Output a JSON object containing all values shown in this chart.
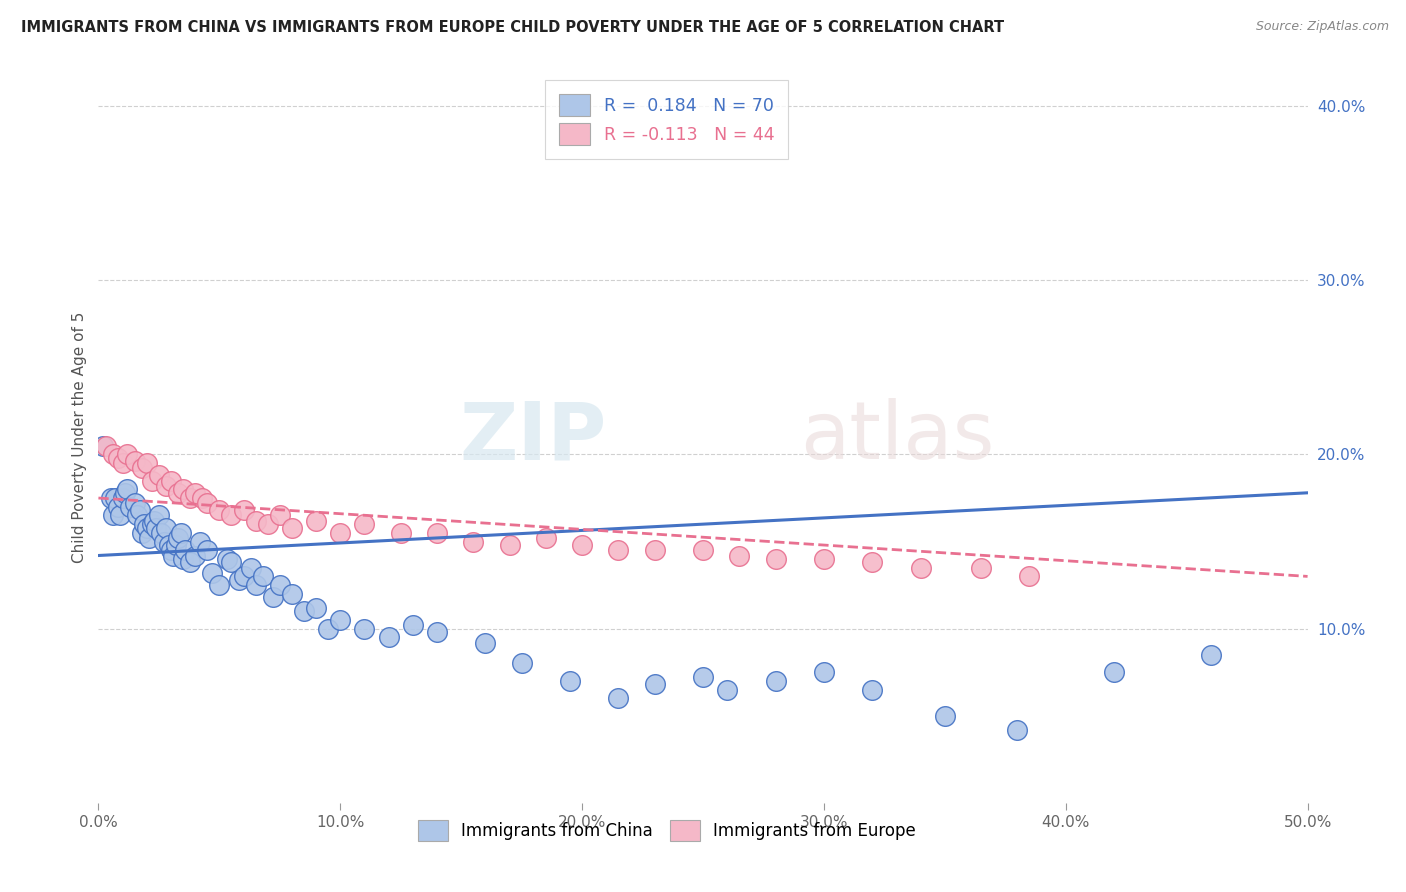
{
  "title": "IMMIGRANTS FROM CHINA VS IMMIGRANTS FROM EUROPE CHILD POVERTY UNDER THE AGE OF 5 CORRELATION CHART",
  "source": "Source: ZipAtlas.com",
  "ylabel": "Child Poverty Under the Age of 5",
  "legend_china": "Immigrants from China",
  "legend_europe": "Immigrants from Europe",
  "r_china": 0.184,
  "n_china": 70,
  "r_europe": -0.113,
  "n_europe": 44,
  "color_china": "#aec6e8",
  "color_europe": "#f5b8c8",
  "color_china_line": "#4472c4",
  "color_europe_line": "#e87090",
  "xlim": [
    0.0,
    0.5
  ],
  "ylim": [
    0.0,
    0.42
  ],
  "xticks": [
    0.0,
    0.1,
    0.2,
    0.3,
    0.4,
    0.5
  ],
  "xtick_labels": [
    "0.0%",
    "10.0%",
    "20.0%",
    "30.0%",
    "40.0%",
    "50.0%"
  ],
  "ytick_labels_right": [
    "10.0%",
    "20.0%",
    "30.0%",
    "40.0%"
  ],
  "yticks_right": [
    0.1,
    0.2,
    0.3,
    0.4
  ],
  "china_x": [
    0.002,
    0.005,
    0.006,
    0.007,
    0.008,
    0.009,
    0.01,
    0.011,
    0.012,
    0.013,
    0.015,
    0.016,
    0.017,
    0.018,
    0.019,
    0.02,
    0.021,
    0.022,
    0.023,
    0.024,
    0.025,
    0.026,
    0.027,
    0.028,
    0.029,
    0.03,
    0.031,
    0.032,
    0.033,
    0.034,
    0.035,
    0.036,
    0.038,
    0.04,
    0.042,
    0.045,
    0.047,
    0.05,
    0.053,
    0.055,
    0.058,
    0.06,
    0.063,
    0.065,
    0.068,
    0.072,
    0.075,
    0.08,
    0.085,
    0.09,
    0.095,
    0.1,
    0.11,
    0.12,
    0.13,
    0.14,
    0.16,
    0.175,
    0.195,
    0.215,
    0.23,
    0.25,
    0.26,
    0.28,
    0.3,
    0.32,
    0.35,
    0.38,
    0.42,
    0.46
  ],
  "china_y": [
    0.205,
    0.175,
    0.165,
    0.175,
    0.17,
    0.165,
    0.175,
    0.178,
    0.18,
    0.17,
    0.172,
    0.165,
    0.168,
    0.155,
    0.16,
    0.158,
    0.152,
    0.16,
    0.162,
    0.158,
    0.165,
    0.155,
    0.15,
    0.158,
    0.148,
    0.145,
    0.142,
    0.148,
    0.152,
    0.155,
    0.14,
    0.145,
    0.138,
    0.142,
    0.15,
    0.145,
    0.132,
    0.125,
    0.14,
    0.138,
    0.128,
    0.13,
    0.135,
    0.125,
    0.13,
    0.118,
    0.125,
    0.12,
    0.11,
    0.112,
    0.1,
    0.105,
    0.1,
    0.095,
    0.102,
    0.098,
    0.092,
    0.08,
    0.07,
    0.06,
    0.068,
    0.072,
    0.065,
    0.07,
    0.075,
    0.065,
    0.05,
    0.042,
    0.075,
    0.085
  ],
  "europe_x": [
    0.003,
    0.006,
    0.008,
    0.01,
    0.012,
    0.015,
    0.018,
    0.02,
    0.022,
    0.025,
    0.028,
    0.03,
    0.033,
    0.035,
    0.038,
    0.04,
    0.043,
    0.045,
    0.05,
    0.055,
    0.06,
    0.065,
    0.07,
    0.075,
    0.08,
    0.09,
    0.1,
    0.11,
    0.125,
    0.14,
    0.155,
    0.17,
    0.185,
    0.2,
    0.215,
    0.23,
    0.25,
    0.265,
    0.28,
    0.3,
    0.32,
    0.34,
    0.365,
    0.385
  ],
  "europe_y": [
    0.205,
    0.2,
    0.198,
    0.195,
    0.2,
    0.196,
    0.192,
    0.195,
    0.185,
    0.188,
    0.182,
    0.185,
    0.178,
    0.18,
    0.175,
    0.178,
    0.175,
    0.172,
    0.168,
    0.165,
    0.168,
    0.162,
    0.16,
    0.165,
    0.158,
    0.162,
    0.155,
    0.16,
    0.155,
    0.155,
    0.15,
    0.148,
    0.152,
    0.148,
    0.145,
    0.145,
    0.145,
    0.142,
    0.14,
    0.14,
    0.138,
    0.135,
    0.135,
    0.13
  ],
  "watermark_zip": "ZIP",
  "watermark_atlas": "atlas",
  "background_color": "#ffffff",
  "grid_color": "#d0d0d0"
}
